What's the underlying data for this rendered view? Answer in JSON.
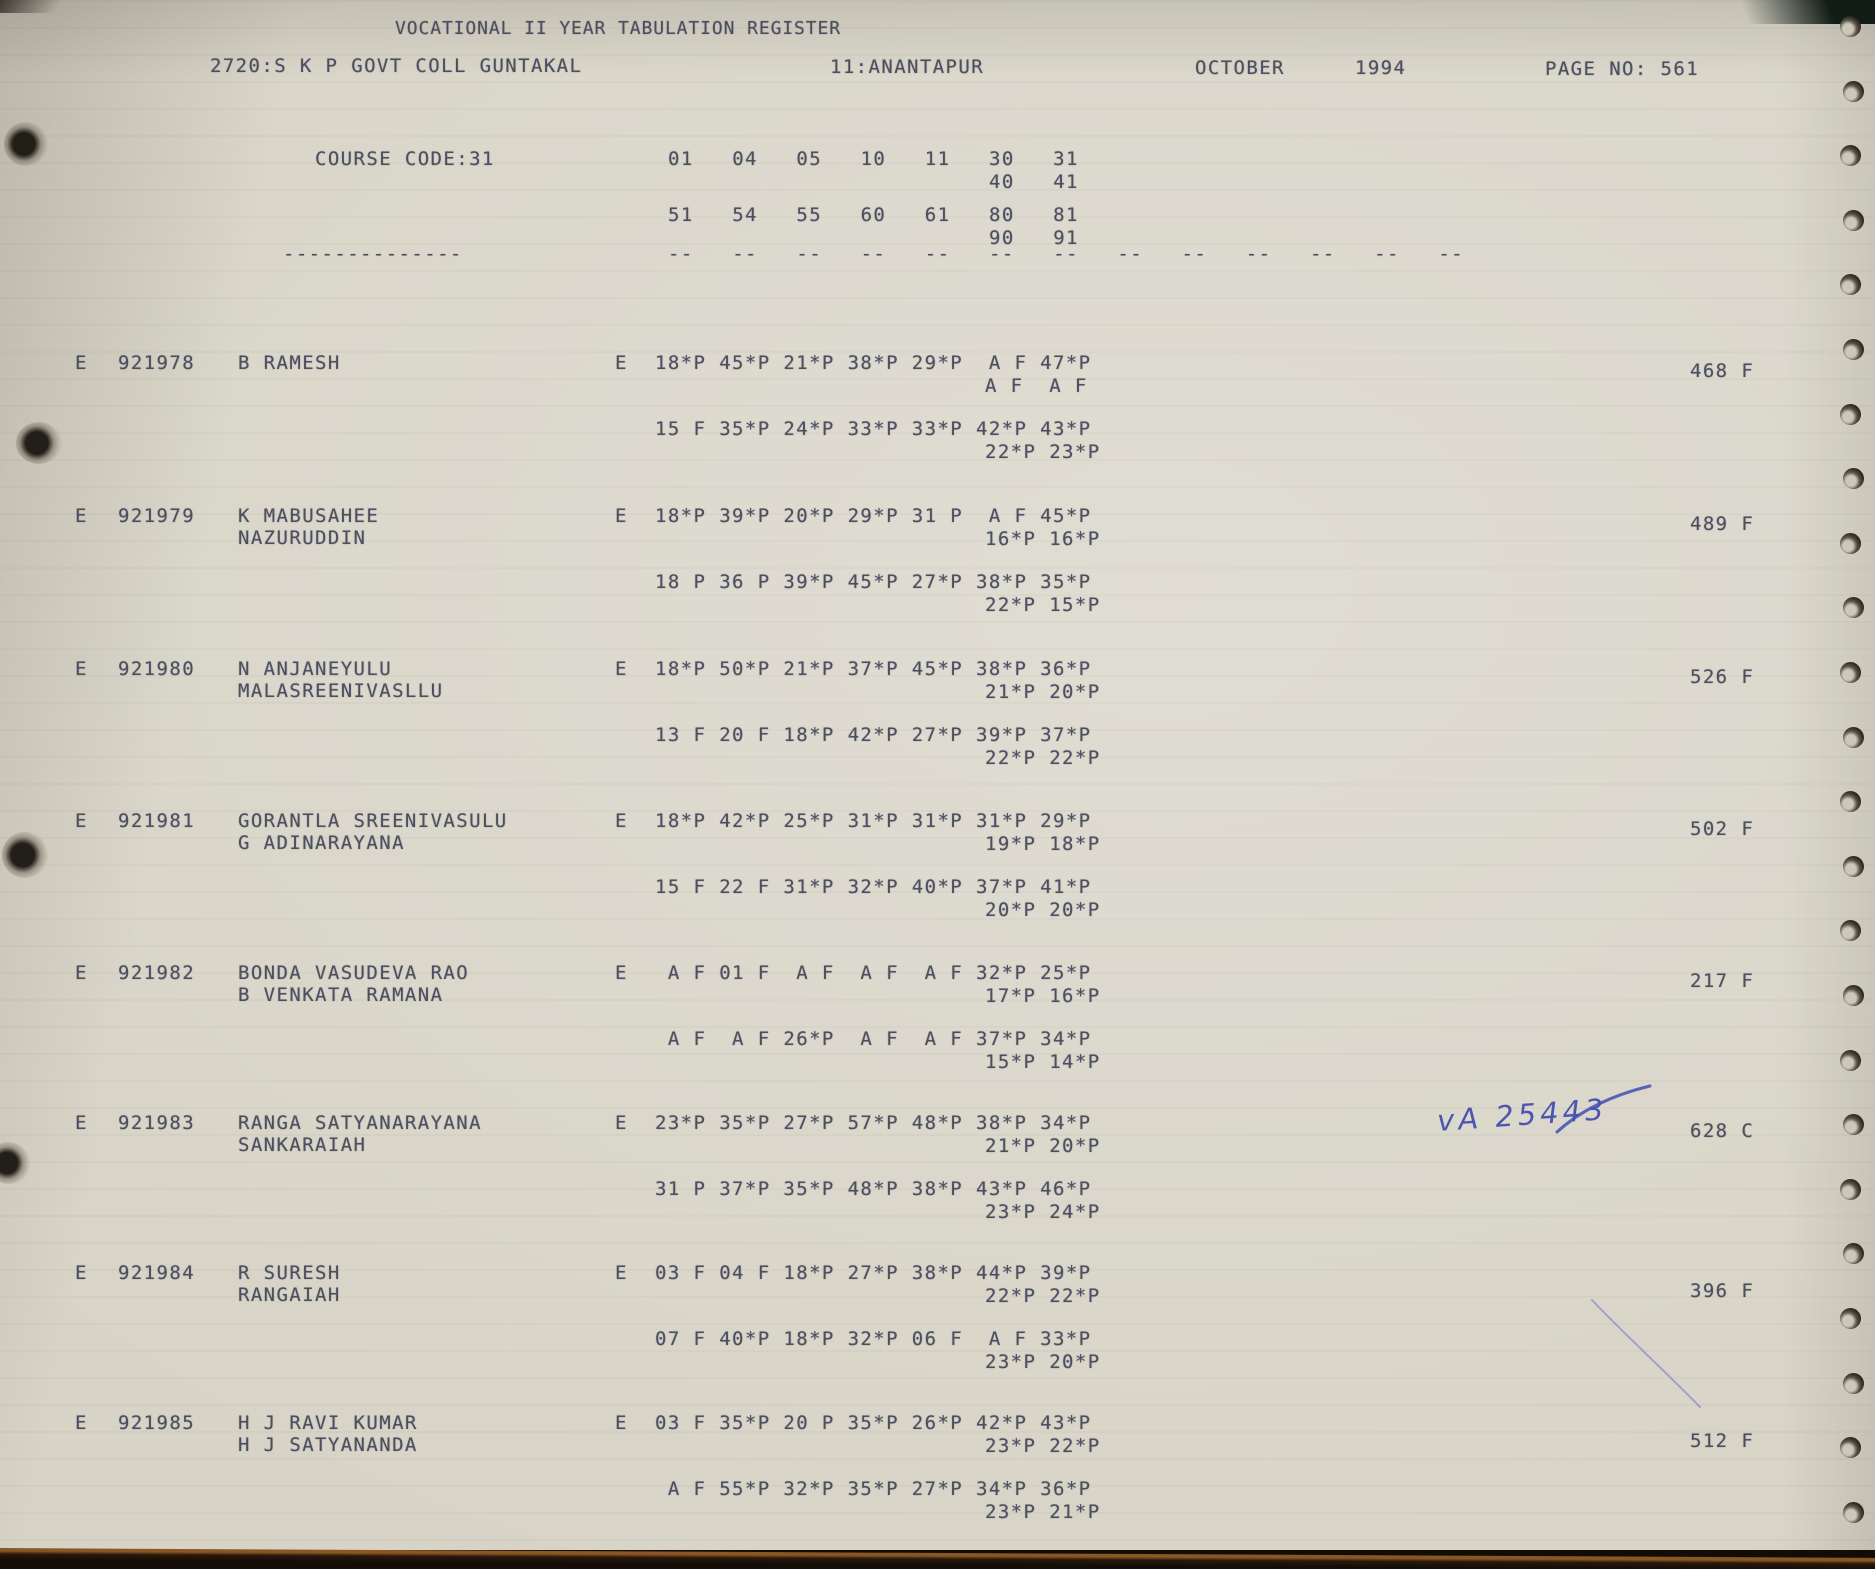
{
  "page": {
    "title": "VOCATIONAL II YEAR TABULATION REGISTER",
    "college": "2720:S K P GOVT COLL GUNTAKAL",
    "district": "11:ANANTAPUR",
    "month": "OCTOBER",
    "year": "1994",
    "page_label": "PAGE NO: 561"
  },
  "course": {
    "label": "COURSE CODE:31",
    "codes_row1": "01   04   05   10   11   30   31",
    "codes_row1b": "40   41",
    "codes_row2": "51   54   55   60   61   80   81",
    "codes_row2b": "90   91",
    "name_underline": "--------------",
    "col_underline": "--   --   --   --   --   --   --   --   --   --   --   --   --"
  },
  "students": [
    {
      "flag": "E",
      "regno": "921978",
      "name": "B RAMESH",
      "name2": "",
      "medium": "E",
      "marks1": "18*P 45*P 21*P 38*P 29*P  A F 47*P",
      "marks1b": "A F  A F",
      "marks2": "15 F 35*P 24*P 33*P 33*P 42*P 43*P",
      "marks2b": "22*P 23*P",
      "total": "468 F"
    },
    {
      "flag": "E",
      "regno": "921979",
      "name": "K MABUSAHEE",
      "name2": "NAZURUDDIN",
      "medium": "E",
      "marks1": "18*P 39*P 20*P 29*P 31 P  A F 45*P",
      "marks1b": "16*P 16*P",
      "marks2": "18 P 36 P 39*P 45*P 27*P 38*P 35*P",
      "marks2b": "22*P 15*P",
      "total": "489 F"
    },
    {
      "flag": "E",
      "regno": "921980",
      "name": "N ANJANEYULU",
      "name2": "MALASREENIVASLLU",
      "medium": "E",
      "marks1": "18*P 50*P 21*P 37*P 45*P 38*P 36*P",
      "marks1b": "21*P 20*P",
      "marks2": "13 F 20 F 18*P 42*P 27*P 39*P 37*P",
      "marks2b": "22*P 22*P",
      "total": "526 F"
    },
    {
      "flag": "E",
      "regno": "921981",
      "name": "GORANTLA SREENIVASULU",
      "name2": "G ADINARAYANA",
      "medium": "E",
      "marks1": "18*P 42*P 25*P 31*P 31*P 31*P 29*P",
      "marks1b": "19*P 18*P",
      "marks2": "15 F 22 F 31*P 32*P 40*P 37*P 41*P",
      "marks2b": "20*P 20*P",
      "total": "502 F"
    },
    {
      "flag": "E",
      "regno": "921982",
      "name": "BONDA VASUDEVA RAO",
      "name2": "B VENKATA RAMANA",
      "medium": "E",
      "marks1": " A F 01 F  A F  A F  A F 32*P 25*P",
      "marks1b": "17*P 16*P",
      "marks2": " A F  A F 26*P  A F  A F 37*P 34*P",
      "marks2b": "15*P 14*P",
      "total": "217 F"
    },
    {
      "flag": "E",
      "regno": "921983",
      "name": "RANGA SATYANARAYANA",
      "name2": "SANKARAIAH",
      "medium": "E",
      "marks1": "23*P 35*P 27*P 57*P 48*P 38*P 34*P",
      "marks1b": "21*P 20*P",
      "marks2": "31 P 37*P 35*P 48*P 38*P 43*P 46*P",
      "marks2b": "23*P 24*P",
      "total": "628 C"
    },
    {
      "flag": "E",
      "regno": "921984",
      "name": "R SURESH",
      "name2": "RANGAIAH",
      "medium": "E",
      "marks1": "03 F 04 F 18*P 27*P 38*P 44*P 39*P",
      "marks1b": "22*P 22*P",
      "marks2": "07 F 40*P 18*P 32*P 06 F  A F 33*P",
      "marks2b": "23*P 20*P",
      "total": "396 F"
    },
    {
      "flag": "E",
      "regno": "921985",
      "name": "H J RAVI KUMAR",
      "name2": "H J SATYANANDA",
      "medium": "E",
      "marks1": "03 F 35*P 20 P 35*P 26*P 42*P 43*P",
      "marks1b": "23*P 22*P",
      "marks2": " A F 55*P 32*P 35*P 27*P 34*P 36*P",
      "marks2b": "23*P 21*P",
      "total": "512 F"
    }
  ],
  "annotations": {
    "handwritten_code": "vA 25443"
  },
  "colors": {
    "paper": "#d7d3c6",
    "ink": "#3f4457",
    "pen_blue": "#3c49ae",
    "edge_dark": "#140d07"
  }
}
